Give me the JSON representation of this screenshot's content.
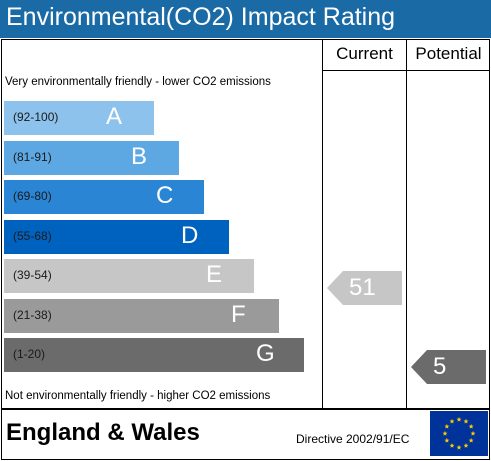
{
  "title": "Environmental(CO2) Impact Rating",
  "columns": {
    "current": "Current",
    "potential": "Potential"
  },
  "top_note": "Very environmentally friendly - lower CO2 emissions",
  "bottom_note": "Not environmentally friendly - higher CO2 emissions",
  "bands": [
    {
      "letter": "A",
      "range": "(92-100)",
      "color": "#8cc2ec"
    },
    {
      "letter": "B",
      "range": "(81-91)",
      "color": "#5da8e3"
    },
    {
      "letter": "C",
      "range": "(69-80)",
      "color": "#2a86d4"
    },
    {
      "letter": "D",
      "range": "(55-68)",
      "color": "#0062bf"
    },
    {
      "letter": "E",
      "range": "(39-54)",
      "color": "#c6c6c6"
    },
    {
      "letter": "F",
      "range": "(21-38)",
      "color": "#9a9a9a"
    },
    {
      "letter": "G",
      "range": "(1-20)",
      "color": "#6b6b6b"
    }
  ],
  "chart_data": {
    "type": "bar",
    "title": "Environmental(CO2) Impact Rating",
    "categories": [
      "A",
      "B",
      "C",
      "D",
      "E",
      "F",
      "G"
    ],
    "ranges": [
      "(92-100)",
      "(81-91)",
      "(69-80)",
      "(55-68)",
      "(39-54)",
      "(21-38)",
      "(1-20)"
    ],
    "current": {
      "value": 51,
      "band": "E",
      "color": "#c6c6c6"
    },
    "potential": {
      "value": 5,
      "band": "G",
      "color": "#6b6b6b"
    }
  },
  "footer": {
    "country": "England & Wales",
    "directive": "Directive 2002/91/EC"
  },
  "flag_colors": {
    "background": "#003399",
    "stars": "#ffcc00"
  }
}
